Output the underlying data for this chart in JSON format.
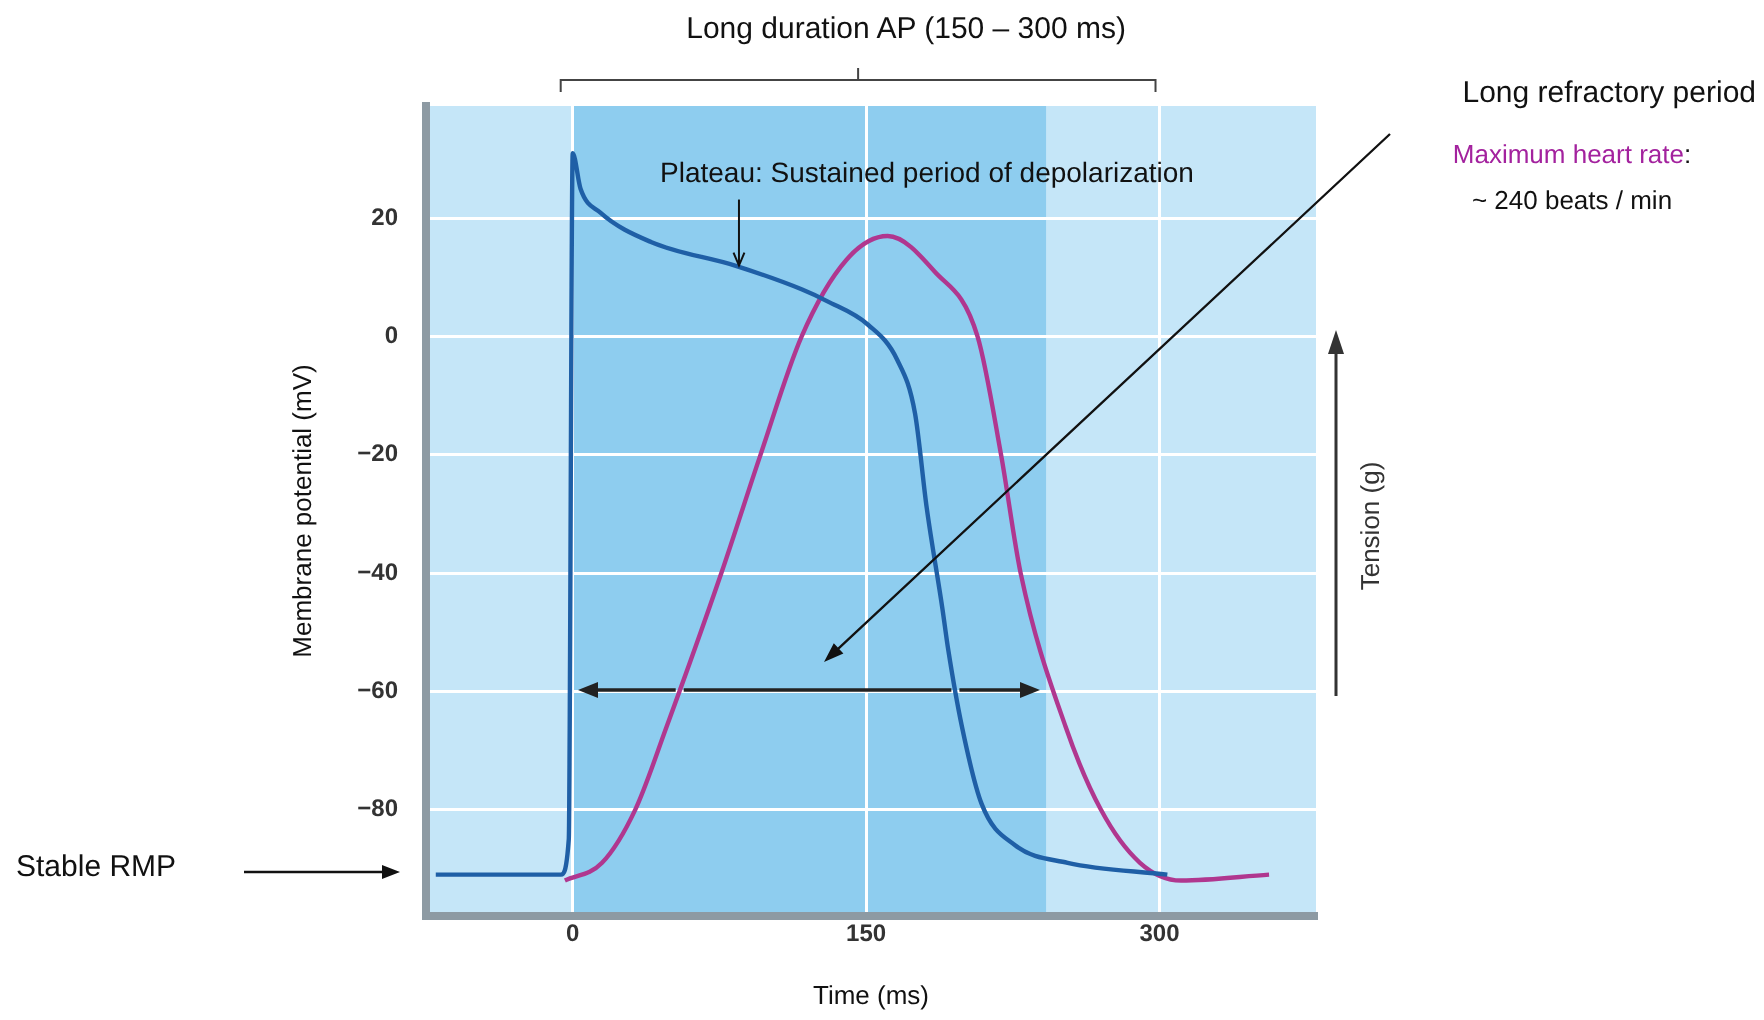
{
  "chart_data": {
    "type": "line",
    "title": "Long duration AP (150 – 300 ms)",
    "xlabel": "Time (ms)",
    "ylabel": "Membrane potential (mV)",
    "y2label": "Tension (g)",
    "xlim": [
      -75,
      380
    ],
    "xticks": [
      0,
      150,
      300
    ],
    "ylim": [
      -98,
      39
    ],
    "yticks": [
      20,
      0,
      -20,
      -40,
      -60,
      -80
    ],
    "grid": true,
    "legend": false,
    "marker": "none",
    "line_style": "solid",
    "series": [
      {
        "color": "#1f5fa6",
        "x": [
          -70,
          -6,
          -2,
          0,
          4,
          14,
          40,
          83,
          117,
          130,
          151,
          166,
          175,
          181,
          189,
          192,
          199,
          209,
          226,
          253,
          304
        ],
        "values": [
          -91,
          -91,
          -85,
          31,
          25,
          21,
          16,
          12,
          8,
          6,
          2,
          -4,
          -13,
          -29,
          -46,
          -53,
          -66,
          -79,
          -86,
          -89,
          -91
        ]
      },
      {
        "color": "#b0378f",
        "x": [
          -4,
          15,
          32,
          48,
          76,
          96,
          117,
          140,
          161,
          185,
          207,
          219,
          229,
          252,
          270,
          290,
          311,
          356
        ],
        "values": [
          -92,
          -89,
          -80,
          -66,
          -40,
          -20,
          0,
          13,
          17,
          11,
          0,
          -20,
          -40,
          -66,
          -80,
          -89,
          -92,
          -91
        ]
      }
    ],
    "bands": [
      {
        "axis": "x",
        "from": -75,
        "to": 380,
        "color": "#c5e6f8"
      },
      {
        "axis": "x",
        "from": 0,
        "to": 242,
        "color": "#8ecdef"
      }
    ],
    "annotations": [
      {
        "text": "Plateau: Sustained period of depolarization",
        "x": 85,
        "y": 11
      },
      "Stable RMP",
      "Long refractory period",
      "Maximum heart rate:",
      "~ 240 beats / min"
    ]
  }
}
